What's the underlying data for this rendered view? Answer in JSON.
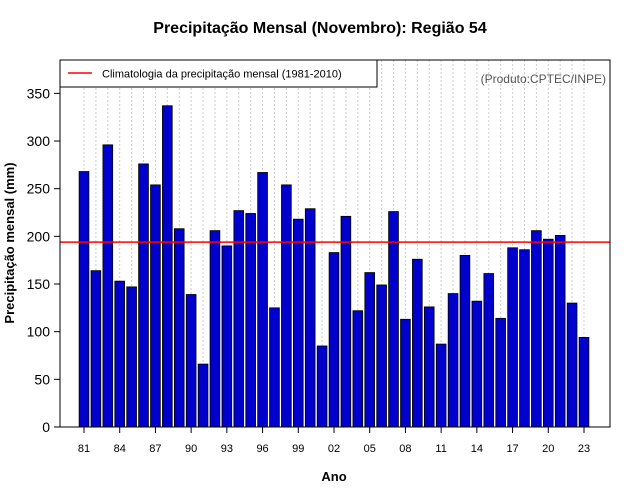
{
  "chart_data": {
    "type": "bar",
    "title": "Precipitação Mensal (Novembro): Região 54",
    "xlabel": "Ano",
    "ylabel": "Precipitação mensal (mm)",
    "ylim": [
      0,
      385
    ],
    "yticks": [
      0,
      50,
      100,
      150,
      200,
      250,
      300,
      350
    ],
    "xtick_labels": [
      "81",
      "84",
      "87",
      "90",
      "93",
      "96",
      "99",
      "02",
      "05",
      "08",
      "11",
      "14",
      "17",
      "20",
      "23"
    ],
    "xtick_indices": [
      0,
      3,
      6,
      9,
      12,
      15,
      18,
      21,
      24,
      27,
      30,
      33,
      36,
      39,
      42
    ],
    "categories": [
      "1981",
      "1982",
      "1983",
      "1984",
      "1985",
      "1986",
      "1987",
      "1988",
      "1989",
      "1990",
      "1991",
      "1992",
      "1993",
      "1994",
      "1995",
      "1996",
      "1997",
      "1998",
      "1999",
      "2000",
      "2001",
      "2002",
      "2003",
      "2004",
      "2005",
      "2006",
      "2007",
      "2008",
      "2009",
      "2010",
      "2011",
      "2012",
      "2013",
      "2014",
      "2015",
      "2016",
      "2017",
      "2018",
      "2019",
      "2020",
      "2021",
      "2022",
      "2023"
    ],
    "values": [
      268,
      164,
      296,
      153,
      147,
      276,
      254,
      337,
      208,
      139,
      66,
      206,
      190,
      227,
      224,
      267,
      125,
      254,
      218,
      229,
      85,
      183,
      221,
      122,
      162,
      149,
      226,
      113,
      176,
      126,
      87,
      140,
      180,
      132,
      161,
      114,
      188,
      186,
      206,
      197,
      201,
      130,
      94
    ],
    "bar_color": "#0000cd",
    "climatology": {
      "value": 194,
      "label": "Climatologia da precipitação mensal (1981-2010)",
      "color": "#ff0000"
    },
    "legend_position": "top-left",
    "grid": "vertical dotted"
  },
  "credit": "(Produto:CPTEC/INPE)"
}
